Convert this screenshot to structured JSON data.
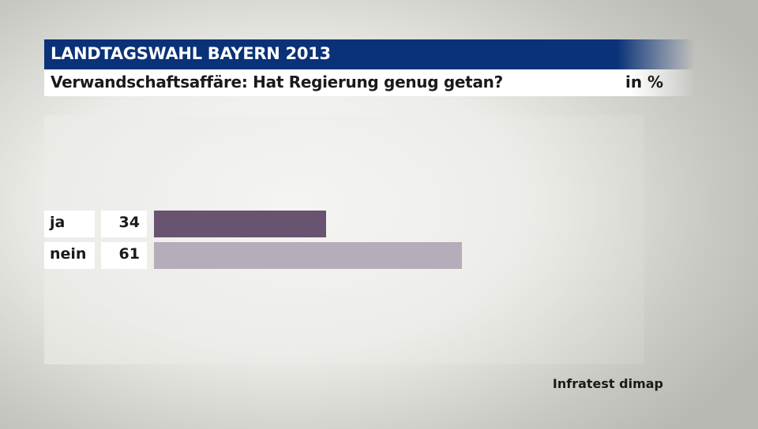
{
  "header": {
    "title": "LANDTAGSWAHL BAYERN 2013",
    "subtitle": "Verwandschaftsaffäre: Hat Regierung genug getan?",
    "unit": "in %"
  },
  "source": "Infratest dimap",
  "colors": {
    "title_bar": "#0a3278",
    "bar_ja": "#685370",
    "bar_nein": "#b6adba"
  },
  "chart_data": {
    "type": "bar",
    "orientation": "horizontal",
    "categories": [
      "ja",
      "nein"
    ],
    "values": [
      34,
      61
    ],
    "value_labels": [
      "34",
      "61"
    ],
    "title": "LANDTAGSWAHL BAYERN 2013",
    "subtitle": "Verwandschaftsaffäre: Hat Regierung genug getan?",
    "unit": "in %",
    "xlim": [
      0,
      100
    ],
    "grid": false,
    "legend": "none"
  }
}
